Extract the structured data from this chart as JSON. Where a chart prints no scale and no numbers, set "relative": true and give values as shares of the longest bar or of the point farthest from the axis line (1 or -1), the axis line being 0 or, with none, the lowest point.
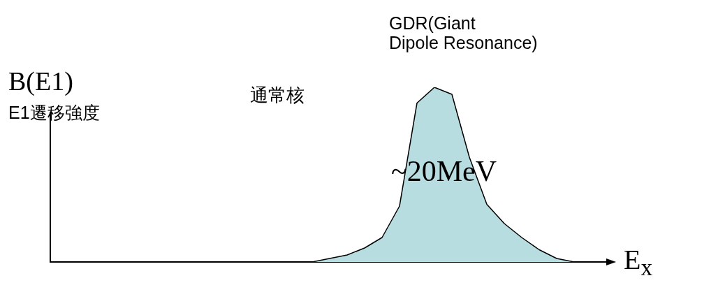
{
  "chart_data": {
    "type": "area",
    "relative": true,
    "ylabel": "B(E1)",
    "xlabel": "E$_{x}$",
    "color": "#b7dde0",
    "categories": [
      null,
      null,
      null,
      null,
      null,
      null,
      null,
      null,
      null,
      null,
      null,
      null,
      null,
      null,
      null,
      null,
      null,
      null,
      null,
      null,
      null,
      null,
      null,
      null,
      null,
      null,
      null,
      null,
      null,
      null,
      null,
      null,
      null
    ],
    "values": [
      0,
      0,
      0,
      0,
      0,
      0,
      0,
      0,
      0,
      0,
      0,
      0,
      0,
      0,
      0,
      0,
      0.02,
      0.04,
      0.08,
      0.14,
      0.32,
      0.91,
      1,
      0.96,
      0.6,
      0.33,
      0.22,
      0.14,
      0.07,
      0.02,
      0,
      0,
      0
    ],
    "annotations": [
      "E1遷移強度",
      "通常核",
      "GDR(Giant\nDipole Resonance)",
      "~20MeV"
    ]
  }
}
